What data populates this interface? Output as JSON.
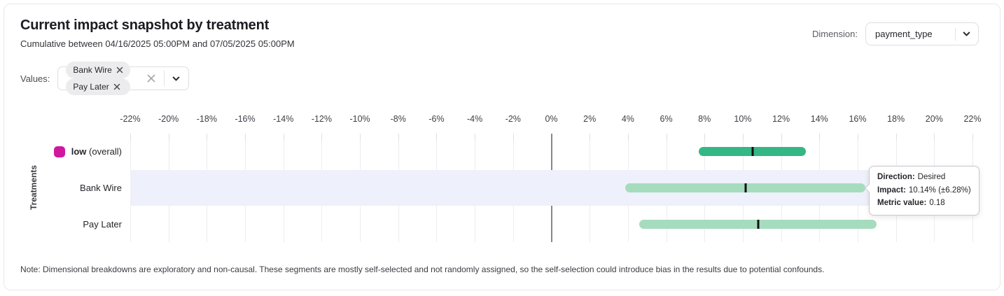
{
  "header": {
    "title": "Current impact snapshot by treatment",
    "subtitle": "Cumulative between 04/16/2025 05:00PM and 07/05/2025 05:00PM",
    "dimension_label": "Dimension:",
    "dimension_value": "payment_type"
  },
  "filters": {
    "values_label": "Values:",
    "chips": [
      {
        "label": "Bank Wire"
      },
      {
        "label": "Pay Later"
      }
    ]
  },
  "chart_data": {
    "type": "bar",
    "subtype": "horizontal-interval",
    "title": "Current impact snapshot by treatment",
    "ylabel": "Treatments",
    "xlabel": "",
    "x_axis": {
      "min": -22,
      "max": 22,
      "step": 2,
      "tick_suffix": "%"
    },
    "grid": true,
    "rows": [
      {
        "label": "low",
        "suffix": " (overall)",
        "emphasis": true,
        "swatch_color": "#d0189e",
        "impact": 10.5,
        "moe": 2.8,
        "bar_color": "#34b785",
        "highlighted": false
      },
      {
        "label": "Bank Wire",
        "suffix": "",
        "emphasis": false,
        "impact": 10.14,
        "moe": 6.28,
        "bar_color": "#a6dcbe",
        "highlighted": true
      },
      {
        "label": "Pay Later",
        "suffix": "",
        "emphasis": false,
        "impact": 10.8,
        "moe": 6.2,
        "bar_color": "#a6dcbe",
        "highlighted": false
      }
    ]
  },
  "colors": {
    "overall_bar": "#34b785",
    "segment_bar": "#a6dcbe",
    "marker": "#101014",
    "swatch": "#d0189e",
    "highlight_band": "#eef0fb"
  },
  "tooltip": {
    "direction_label": "Direction:",
    "direction_value": "Desired",
    "impact_label": "Impact:",
    "impact_value": "10.14% (±6.28%)",
    "metric_label": "Metric value:",
    "metric_value": "0.18"
  },
  "note": "Note: Dimensional breakdowns are exploratory and non-causal. These segments are mostly self-selected and not randomly assigned, so the self-selection could introduce bias in the results due to potential confounds."
}
